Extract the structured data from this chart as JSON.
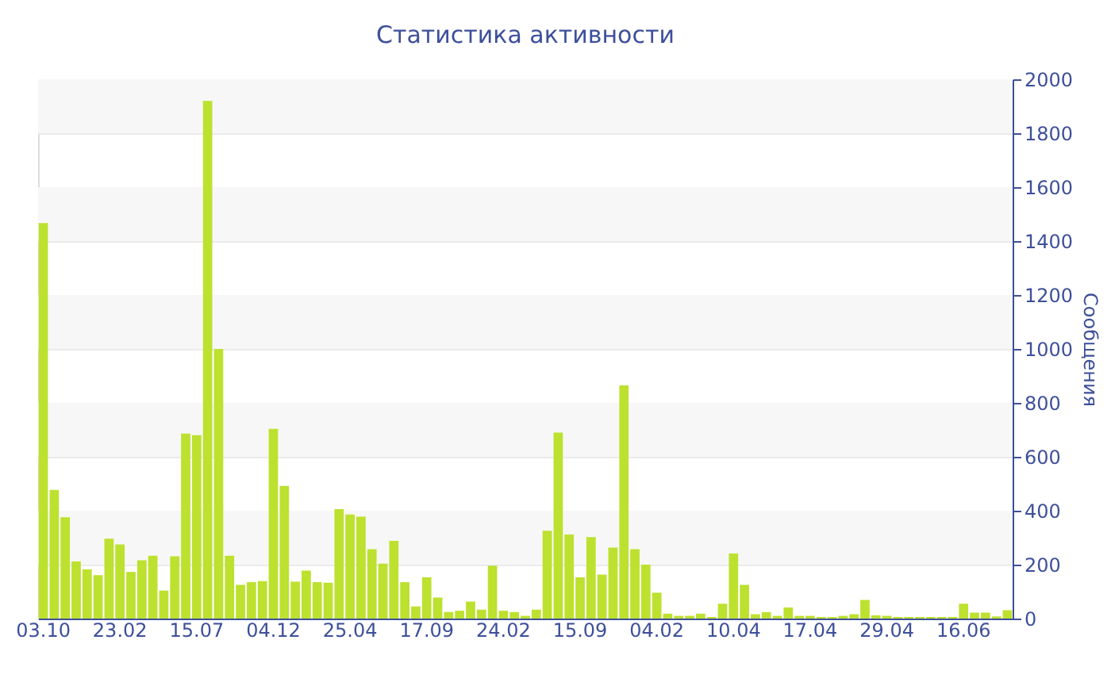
{
  "chart_data": {
    "type": "bar",
    "title": "Статистика активности",
    "ylabel": "Сообщения",
    "categories": [
      "03.10",
      null,
      null,
      null,
      null,
      null,
      null,
      "23.02",
      null,
      null,
      null,
      null,
      null,
      null,
      "15.07",
      null,
      null,
      null,
      null,
      null,
      null,
      "04.12",
      null,
      null,
      null,
      null,
      null,
      null,
      "25.04",
      null,
      null,
      null,
      null,
      null,
      null,
      "17.09",
      null,
      null,
      null,
      null,
      null,
      null,
      "24.02",
      null,
      null,
      null,
      null,
      null,
      null,
      "15.09",
      null,
      null,
      null,
      null,
      null,
      null,
      "04.02",
      null,
      null,
      null,
      null,
      null,
      null,
      "10.04",
      null,
      null,
      null,
      null,
      null,
      null,
      "17.04",
      null,
      null,
      null,
      null,
      null,
      null,
      "29.04",
      null,
      null,
      null,
      null,
      null,
      null,
      "16.06",
      null,
      null,
      null,
      null
    ],
    "values": [
      1467,
      477,
      376,
      212,
      182,
      161,
      296,
      275,
      173,
      216,
      233,
      104,
      231,
      686,
      680,
      1920,
      1000,
      233,
      125,
      135,
      139,
      704,
      492,
      137,
      178,
      135,
      133,
      406,
      386,
      378,
      257,
      204,
      288,
      135,
      45,
      153,
      78,
      24,
      29,
      63,
      33,
      196,
      29,
      24,
      10,
      33,
      326,
      690,
      312,
      153,
      302,
      163,
      263,
      865,
      257,
      200,
      96,
      18,
      10,
      10,
      18,
      6,
      55,
      241,
      125,
      16,
      24,
      10,
      41,
      10,
      10,
      6,
      6,
      10,
      16,
      69,
      12,
      10,
      6,
      6,
      6,
      6,
      6,
      6,
      55,
      22,
      22,
      8,
      31
    ],
    "color": "#bde12f",
    "ylim": [
      0,
      2000
    ],
    "yticks": [
      0,
      200,
      400,
      600,
      800,
      1000,
      1200,
      1400,
      1600,
      1800,
      2000
    ],
    "grid": true
  }
}
